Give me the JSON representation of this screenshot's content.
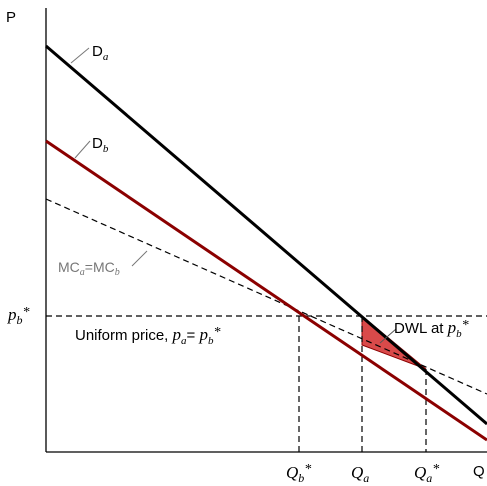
{
  "axes": {
    "y_label": "P",
    "x_label": "Q"
  },
  "curves": {
    "demand_a": {
      "main": "D",
      "sub": "a",
      "color": "#000000"
    },
    "demand_b": {
      "main": "D",
      "sub": "b",
      "color": "#8b0000"
    },
    "marginal_cost": {
      "main1": "MC",
      "sub1": "a",
      "eq": "=MC",
      "sub2": "b",
      "color": "#777777"
    }
  },
  "y_tick": {
    "main": "p",
    "sub": "b",
    "star": "*"
  },
  "x_ticks": {
    "qb_star": {
      "main": "Q",
      "sub": "b",
      "star": "*"
    },
    "qa": {
      "main": "Q",
      "sub": "a"
    },
    "qa_star": {
      "main": "Q",
      "sub": "a",
      "star": "*"
    }
  },
  "uniform_price_label": {
    "prefix": "Uniform price, ",
    "p1": "p",
    "sub1": "a",
    "eq": "= ",
    "p2": "p",
    "sub2": "b",
    "star": "*"
  },
  "dwl_label": {
    "text": "DWL at ",
    "p": "p",
    "sub": "b",
    "star": "*"
  },
  "colors": {
    "dwl_fill": "#d94a4a",
    "dwl_stroke": "#8b0000",
    "axis": "#000000"
  }
}
